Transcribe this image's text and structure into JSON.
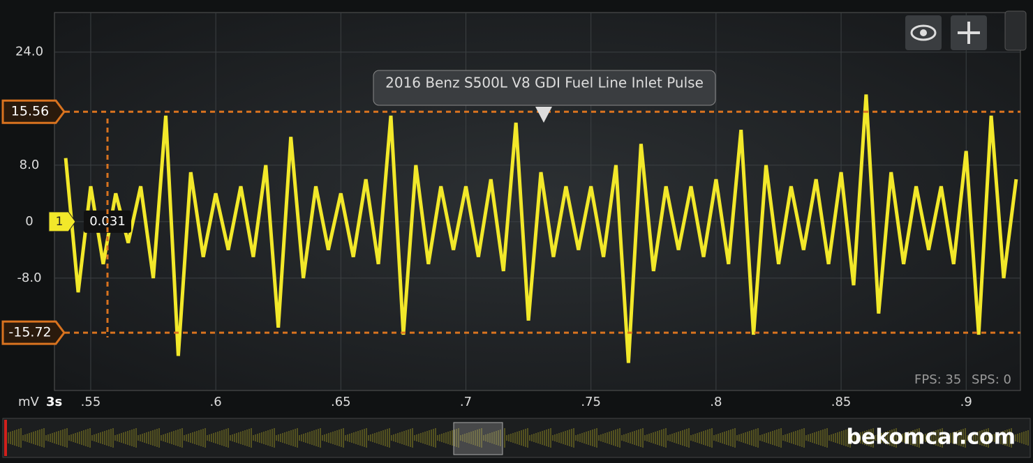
{
  "chart_data": {
    "type": "line",
    "title": "2016 Benz S500L V8 GDI Fuel Line Inlet Pulse",
    "y_unit": "mV",
    "time_base": "3s",
    "color": "#f2e82a",
    "xlim": [
      0.5355,
      0.9217
    ],
    "ylim": [
      -23.9,
      29.6
    ],
    "xticks": [
      {
        "value": 0.55,
        "label": ".55"
      },
      {
        "value": 0.6,
        "label": ".6"
      },
      {
        "value": 0.65,
        "label": ".65"
      },
      {
        "value": 0.7,
        "label": ".7"
      },
      {
        "value": 0.75,
        "label": ".75"
      },
      {
        "value": 0.8,
        "label": ".8"
      },
      {
        "value": 0.85,
        "label": ".85"
      },
      {
        "value": 0.9,
        "label": ".9"
      }
    ],
    "yticks": [
      {
        "value": 24,
        "label": "24.0"
      },
      {
        "value": 8,
        "label": "8.0"
      },
      0,
      {
        "value": -8,
        "label": "-8.0"
      }
    ],
    "grid": true,
    "cursors": [
      {
        "value": 15.56,
        "label": "15.56"
      },
      {
        "value": -15.72,
        "label": "-15.72"
      }
    ],
    "channel": {
      "label": "1",
      "level": 0,
      "readout": "0.031"
    },
    "x": [
      0.54,
      0.545,
      0.55,
      0.555,
      0.56,
      0.565,
      0.57,
      0.575,
      0.58,
      0.585,
      0.59,
      0.595,
      0.6,
      0.605,
      0.61,
      0.615,
      0.62,
      0.625,
      0.63,
      0.635,
      0.64,
      0.645,
      0.65,
      0.655,
      0.66,
      0.665,
      0.67,
      0.675,
      0.68,
      0.685,
      0.69,
      0.695,
      0.7,
      0.705,
      0.71,
      0.715,
      0.72,
      0.725,
      0.73,
      0.735,
      0.74,
      0.745,
      0.75,
      0.755,
      0.76,
      0.765,
      0.77,
      0.775,
      0.78,
      0.785,
      0.79,
      0.795,
      0.8,
      0.805,
      0.81,
      0.815,
      0.82,
      0.825,
      0.83,
      0.835,
      0.84,
      0.845,
      0.85,
      0.855,
      0.86,
      0.865,
      0.87,
      0.875,
      0.88,
      0.885,
      0.89,
      0.895,
      0.9,
      0.905,
      0.91,
      0.915,
      0.92
    ],
    "values": [
      9,
      -10,
      5,
      -6,
      4,
      -3,
      5,
      -8,
      15,
      -19,
      7,
      -5,
      4,
      -4,
      5,
      -5,
      8,
      -15,
      12,
      -8,
      5,
      -4,
      4,
      -5,
      6,
      -6,
      15,
      -16,
      8,
      -6,
      5,
      -4,
      5,
      -5,
      6,
      -7,
      14,
      -14,
      7,
      -5,
      5,
      -4,
      5,
      -5,
      8,
      -20,
      11,
      -7,
      5,
      -4,
      5,
      -5,
      6,
      -6,
      13,
      -16,
      8,
      -6,
      5,
      -4,
      6,
      -6,
      7,
      -9,
      18,
      -13,
      7,
      -6,
      5,
      -4,
      5,
      -6,
      10,
      -16,
      15,
      -8,
      6
    ],
    "status": {
      "fps": "FPS: 35",
      "sps": "SPS: 0"
    }
  },
  "watermark": "bekomcar.com"
}
